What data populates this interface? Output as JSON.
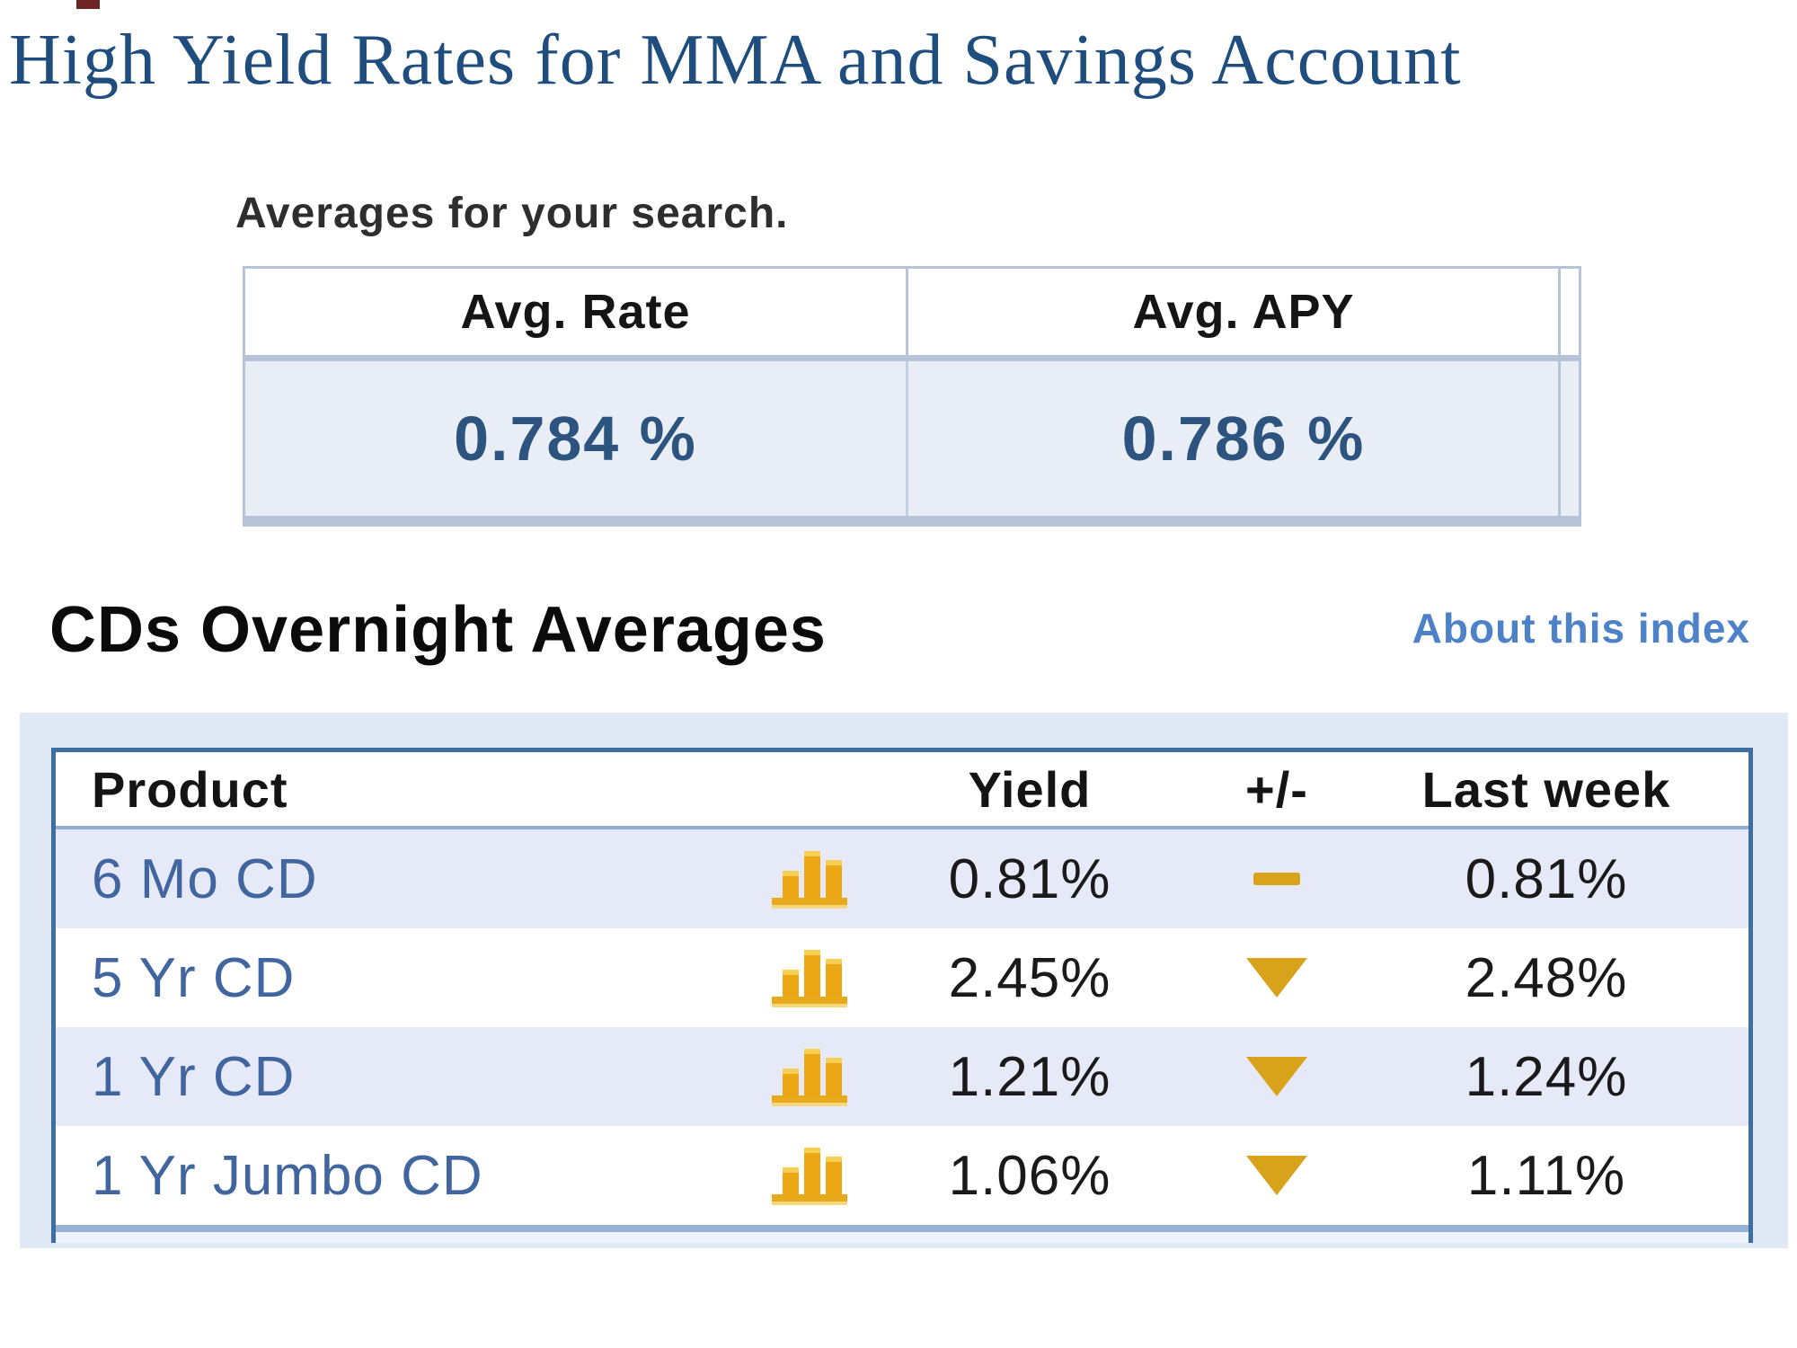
{
  "title": "High Yield Rates for MMA and Savings Account",
  "averages": {
    "label": "Averages for your search.",
    "headers": {
      "rate": "Avg. Rate",
      "apy": "Avg. APY"
    },
    "values": {
      "rate": "0.784 %",
      "apy": "0.786 %"
    }
  },
  "cds": {
    "heading": "CDs Overnight Averages",
    "about_link": "About this index",
    "columns": {
      "product": "Product",
      "yield": "Yield",
      "change": "+/-",
      "last_week": "Last week"
    },
    "rows": [
      {
        "product": "6 Mo CD",
        "yield": "0.81%",
        "change": "flat",
        "last_week": "0.81%"
      },
      {
        "product": "5 Yr CD",
        "yield": "2.45%",
        "change": "down",
        "last_week": "2.48%"
      },
      {
        "product": "1 Yr CD",
        "yield": "1.21%",
        "change": "down",
        "last_week": "1.24%"
      },
      {
        "product": "1 Yr Jumbo CD",
        "yield": "1.06%",
        "change": "down",
        "last_week": "1.11%"
      }
    ]
  },
  "icons": {
    "chart": "bar-chart-icon",
    "flat": "dash-icon",
    "down": "triangle-down-icon"
  },
  "colors": {
    "title_blue": "#1f4e7e",
    "table_border_blue": "#3e6fa3",
    "link_blue": "#4d82c8",
    "product_link_blue": "#41659f",
    "row_alt_blue": "#e6eaf8",
    "avg_row_blue": "#e9edf5",
    "gold": "#e2a218"
  }
}
